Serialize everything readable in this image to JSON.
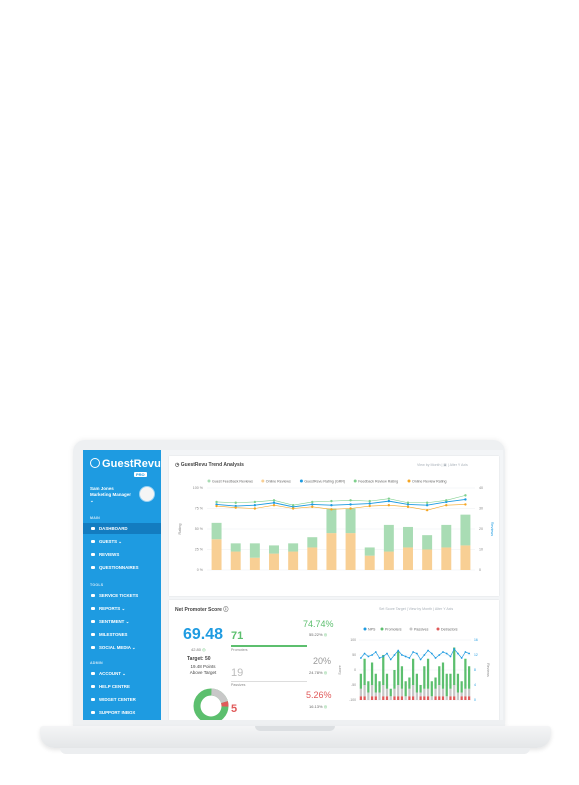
{
  "sidebar": {
    "logo": "GuestRevu",
    "badge": "PRO",
    "user_name": "Sam Jones",
    "user_role": "Marketing Manager",
    "sections": {
      "main": "MAIN",
      "tools": "TOOLS",
      "admin": "ADMIN"
    },
    "main_items": [
      "DASHBOARD",
      "GUESTS ⌄",
      "REVIEWS",
      "QUESTIONNAIRES"
    ],
    "tool_items": [
      "SERVICE TICKETS",
      "REPORTS ⌄",
      "SENTIMENT ⌄",
      "MILESTONES",
      "SOCIAL MEDIA ⌄"
    ],
    "admin_items": [
      "ACCOUNT ⌄",
      "HELP CENTRE",
      "WIDGET CENTER",
      "SUPPORT INBOX"
    ]
  },
  "trend": {
    "title": "GuestRevu Trend Analysis",
    "controls": "View by Month | ▣ | Alter Y Axis",
    "legend": [
      "Guest Feedback Reviews",
      "Online Reviews",
      "GuestRevu Rating (GRR)",
      "Feedback Review Rating",
      "Online Review Rating"
    ],
    "y_left_label": "Rating",
    "y_right_label": "Reviews",
    "y_left_ticks": [
      "100 %",
      "75 %",
      "50 %",
      "25 %",
      "0 %"
    ],
    "y_right_ticks": [
      "40",
      "30",
      "20",
      "10",
      "0"
    ]
  },
  "nps": {
    "title": "Net Promoter Score",
    "controls": "Set Score Target | View by Month | Alter Y Axis",
    "score": "69.48",
    "score_change": "42.80",
    "target": "Target: 50",
    "above": "19.48 Points Above Target",
    "promoters_count": "71",
    "promoters_label": "Promoters",
    "promoters_pct": "74.74%",
    "promoters_change": "55.22%",
    "passives_count": "19",
    "passives_label": "Passives",
    "passives_pct": "20%",
    "passives_change": "24.78%",
    "detractors_count": "5",
    "detractors_pct": "5.26%",
    "detractors_change": "16.13%",
    "chart_legend": [
      "NPS",
      "Promoters",
      "Passives",
      "Detractors"
    ],
    "chart_y_left_label": "Score",
    "chart_y_right_label": "Reviews",
    "chart_y_left_ticks": [
      "100",
      "50",
      "0",
      "-50",
      "-100"
    ],
    "chart_y_right_ticks": [
      "16",
      "12",
      "8",
      "4",
      "0"
    ]
  },
  "colors": {
    "sidebar": "#1e9be1",
    "guest_feedback": "#a9dcb4",
    "online_reviews": "#f8cf94",
    "grr": "#1e9be1",
    "feedback_rating": "#7fd08e",
    "online_rating": "#f5a623",
    "promoters": "#5cbf6e",
    "passives": "#c8c8c8",
    "detractors": "#e05a5a"
  },
  "chart_data": [
    {
      "type": "bar",
      "title": "GuestRevu Trend Analysis",
      "xlabel": "",
      "ylabel": "Rating",
      "ylim": [
        0,
        100
      ],
      "y2lim": [
        0,
        40
      ],
      "categories": [
        "1",
        "2",
        "3",
        "4",
        "5",
        "6",
        "7",
        "8",
        "9",
        "10",
        "11",
        "12",
        "13",
        "14"
      ],
      "series": [
        {
          "name": "Online Reviews",
          "axis": "right",
          "values": [
            15,
            9,
            6,
            8,
            9,
            11,
            18,
            18,
            7,
            9,
            11,
            10,
            11,
            12
          ]
        },
        {
          "name": "Guest Feedback Reviews",
          "axis": "right",
          "values": [
            8,
            4,
            7,
            4,
            4,
            5,
            12,
            12,
            4,
            13,
            10,
            7,
            11,
            15
          ]
        },
        {
          "name": "GuestRevu Rating (GRR)",
          "axis": "left",
          "values": [
            80,
            78,
            79,
            82,
            77,
            80,
            79,
            80,
            81,
            84,
            80,
            79,
            83,
            86
          ]
        },
        {
          "name": "Feedback Review Rating",
          "axis": "left",
          "values": [
            83,
            82,
            83,
            85,
            79,
            83,
            84,
            85,
            84,
            87,
            82,
            82,
            85,
            91
          ]
        },
        {
          "name": "Online Review Rating",
          "axis": "left",
          "values": [
            78,
            76,
            75,
            79,
            75,
            77,
            74,
            75,
            78,
            79,
            77,
            73,
            79,
            80
          ]
        }
      ]
    },
    {
      "type": "bar",
      "title": "",
      "ylabel": "Score",
      "ylim": [
        -100,
        100
      ],
      "y2lim": [
        0,
        16
      ],
      "categories": [
        "1",
        "2",
        "3",
        "4",
        "5",
        "6",
        "7",
        "8",
        "9",
        "10",
        "11",
        "12",
        "13",
        "14",
        "15",
        "16",
        "17",
        "18",
        "19",
        "20",
        "21",
        "22",
        "23",
        "24",
        "25",
        "26",
        "27",
        "28",
        "29",
        "30"
      ],
      "series": [
        {
          "name": "Promoters",
          "values": [
            4,
            7,
            3,
            6,
            5,
            3,
            8,
            4,
            2,
            5,
            9,
            6,
            4,
            3,
            7,
            5,
            2,
            6,
            8,
            4,
            3,
            5,
            7,
            6,
            4,
            10,
            5,
            3,
            8,
            6
          ]
        },
        {
          "name": "Passives",
          "values": [
            2,
            3,
            2,
            3,
            1,
            2,
            3,
            2,
            1,
            2,
            3,
            2,
            1,
            2,
            3,
            2,
            1,
            2,
            2,
            1,
            2,
            3,
            2,
            1,
            2,
            3,
            2,
            1,
            2,
            2
          ]
        },
        {
          "name": "Detractors",
          "values": [
            1,
            1,
            0,
            1,
            1,
            0,
            1,
            1,
            0,
            1,
            1,
            1,
            0,
            1,
            1,
            0,
            1,
            1,
            1,
            0,
            1,
            1,
            1,
            0,
            1,
            1,
            0,
            1,
            1,
            1
          ]
        },
        {
          "name": "NPS",
          "values": [
            40,
            55,
            45,
            50,
            60,
            40,
            45,
            55,
            35,
            50,
            65,
            50,
            45,
            40,
            60,
            55,
            35,
            50,
            65,
            55,
            40,
            50,
            60,
            55,
            45,
            70,
            55,
            40,
            60,
            55
          ]
        }
      ]
    }
  ]
}
